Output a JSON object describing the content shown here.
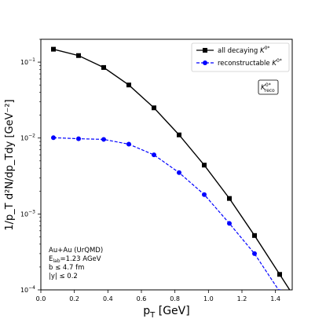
{
  "chart_data": {
    "type": "line",
    "title": "",
    "xlabel": "p",
    "xlabel_sub": "T",
    "xlabel_unit": " [GeV]",
    "ylabel": "1/p_T d²N/dp_Tdy [GeV⁻²]",
    "xlim": [
      0,
      1.5
    ],
    "ylim": [
      0.0001,
      0.2
    ],
    "yscale": "log",
    "grid": false,
    "legend_position": "top-right",
    "x_ticks": [
      0,
      0.2,
      0.4,
      0.6,
      0.8,
      1.0,
      1.2,
      1.4
    ],
    "x_tick_labels": [
      "0.0",
      "0.2",
      "0.4",
      "0.6",
      "0.8",
      "1.0",
      "1.2",
      "1.4"
    ],
    "y_ticks": [
      {
        "value": 0.1,
        "base": "10",
        "exp": "−1"
      },
      {
        "value": 0.01,
        "base": "10",
        "exp": "−2"
      },
      {
        "value": 0.001,
        "base": "10",
        "exp": "−3"
      },
      {
        "value": 0.0001,
        "base": "10",
        "exp": "−4"
      }
    ],
    "series": [
      {
        "name": "all decaying K⁰*",
        "label_main": "all decaying ",
        "label_sym": "K",
        "label_sup": "0*",
        "color": "#000000",
        "marker": "square",
        "linestyle": "solid",
        "x": [
          0.075,
          0.225,
          0.375,
          0.525,
          0.675,
          0.825,
          0.975,
          1.125,
          1.275,
          1.425
        ],
        "y": [
          0.148,
          0.122,
          0.085,
          0.05,
          0.025,
          0.011,
          0.0044,
          0.0016,
          0.00052,
          0.00016
        ]
      },
      {
        "name": "reconstructable K⁰*",
        "label_main": "reconstructable ",
        "label_sym": "K",
        "label_sup": "0*",
        "color": "#0000ff",
        "marker": "circle",
        "linestyle": "dashed",
        "x": [
          0.075,
          0.225,
          0.375,
          0.525,
          0.675,
          0.825,
          0.975,
          1.125,
          1.275,
          1.425
        ],
        "y": [
          0.0101,
          0.0098,
          0.0096,
          0.0083,
          0.006,
          0.0035,
          0.0018,
          0.00075,
          0.0003,
          9.5e-05
        ]
      }
    ],
    "annotation_box": {
      "sym": "K",
      "sup": "0*",
      "sub": "reco"
    },
    "annotation_text": {
      "line1": "Au+Au (UrQMD)",
      "line2_pre": "E",
      "line2_sub": "lab",
      "line2_post": "=1.23 AGeV",
      "line3": "b ≤ 4.7 fm",
      "line4": "|y| ≤ 0.2"
    }
  }
}
